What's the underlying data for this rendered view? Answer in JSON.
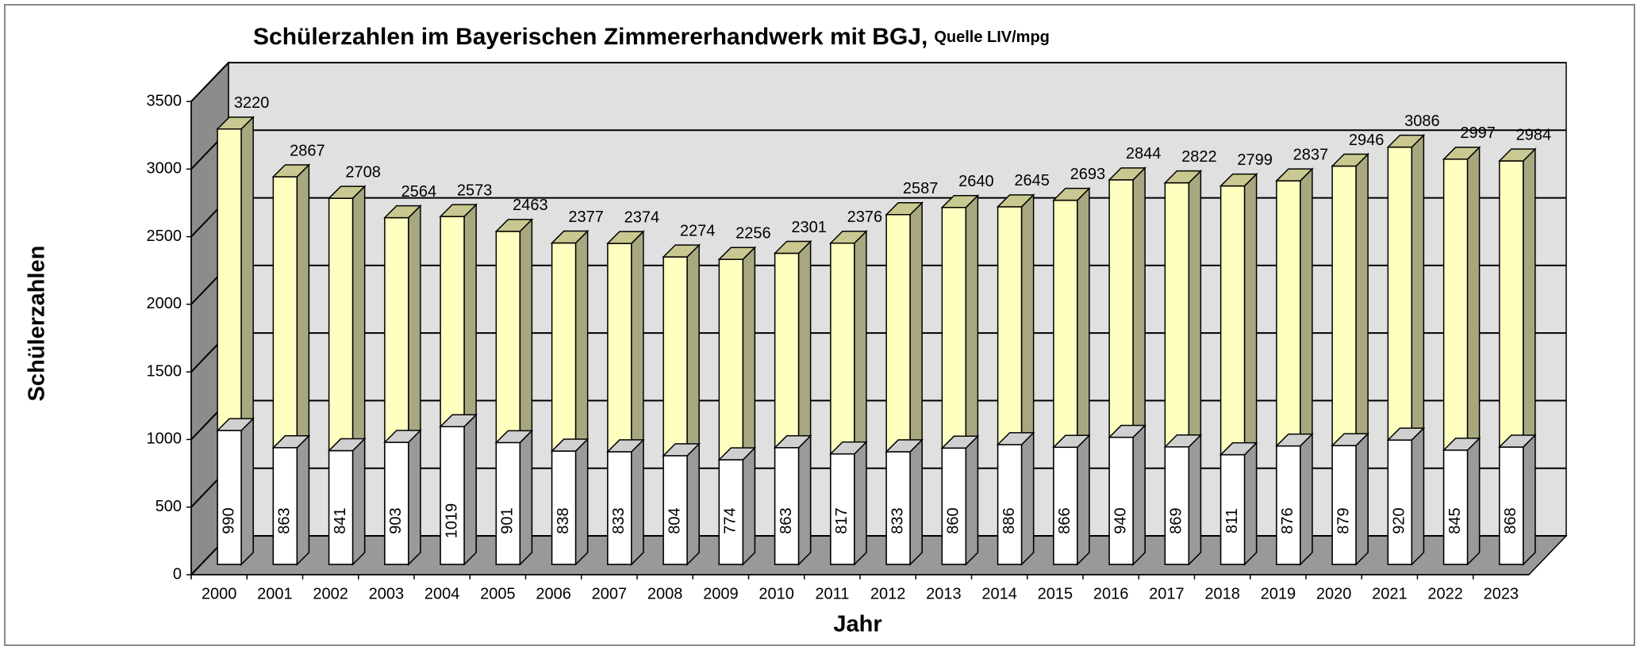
{
  "chart_data": {
    "type": "bar3d",
    "title": "Schülerzahlen im Bayerischen Zimmererhandwerk mit BGJ,",
    "subtitle": "Quelle LIV/mpg",
    "x_label": "Jahr",
    "y_label": "Schülerzahlen",
    "categories": [
      "2000",
      "2001",
      "2002",
      "2003",
      "2004",
      "2005",
      "2006",
      "2007",
      "2008",
      "2009",
      "2010",
      "2011",
      "2012",
      "2013",
      "2014",
      "2015",
      "2016",
      "2017",
      "2018",
      "2019",
      "2020",
      "2021",
      "2022",
      "2023"
    ],
    "series": [
      {
        "color": "#ffffff",
        "values": [
          990,
          863,
          841,
          903,
          1019,
          901,
          838,
          833,
          804,
          774,
          863,
          817,
          833,
          860,
          886,
          866,
          940,
          869,
          811,
          876,
          879,
          920,
          845,
          868
        ]
      },
      {
        "color": "#ffffc0",
        "values": [
          3220,
          2867,
          2708,
          2564,
          2573,
          2463,
          2377,
          2374,
          2274,
          2256,
          2301,
          2376,
          2587,
          2640,
          2645,
          2693,
          2844,
          2822,
          2799,
          2837,
          2946,
          3086,
          2997,
          2984
        ]
      }
    ],
    "ylim": [
      0,
      3500
    ],
    "yticks": [
      0,
      500,
      1000,
      1500,
      2000,
      2500,
      3000,
      3500
    ],
    "grid": true
  }
}
